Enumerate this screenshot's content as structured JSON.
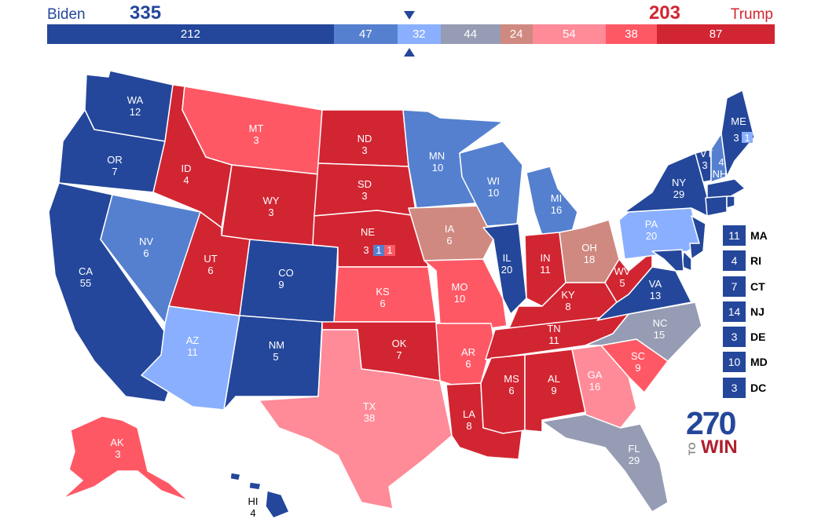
{
  "header": {
    "biden_label": "Biden",
    "biden_total": "335",
    "trump_label": "Trump",
    "trump_total": "203"
  },
  "ev_bar": [
    {
      "value": "212",
      "color": "#24479b"
    },
    {
      "value": "47",
      "color": "#5580cf"
    },
    {
      "value": "32",
      "color": "#8aafff"
    },
    {
      "value": "44",
      "color": "#959cb3"
    },
    {
      "value": "24",
      "color": "#cf8980"
    },
    {
      "value": "54",
      "color": "#ff8b98"
    },
    {
      "value": "38",
      "color": "#ff5865"
    },
    {
      "value": "87",
      "color": "#d22532"
    }
  ],
  "colors": {
    "safe_dem": "#24479b",
    "likely_dem": "#5580cf",
    "lean_dem": "#8aafff",
    "tossup": "#959cb3",
    "tilt_rep": "#cf8980",
    "lean_rep": "#ff8b98",
    "likely_rep": "#ff5865",
    "safe_rep": "#d22532"
  },
  "states": {
    "WA": {
      "abbr": "WA",
      "ev": "12"
    },
    "OR": {
      "abbr": "OR",
      "ev": "7"
    },
    "CA": {
      "abbr": "CA",
      "ev": "55"
    },
    "NV": {
      "abbr": "NV",
      "ev": "6"
    },
    "ID": {
      "abbr": "ID",
      "ev": "4"
    },
    "MT": {
      "abbr": "MT",
      "ev": "3"
    },
    "WY": {
      "abbr": "WY",
      "ev": "3"
    },
    "UT": {
      "abbr": "UT",
      "ev": "6"
    },
    "AZ": {
      "abbr": "AZ",
      "ev": "11"
    },
    "CO": {
      "abbr": "CO",
      "ev": "9"
    },
    "NM": {
      "abbr": "NM",
      "ev": "5"
    },
    "ND": {
      "abbr": "ND",
      "ev": "3"
    },
    "SD": {
      "abbr": "SD",
      "ev": "3"
    },
    "NE": {
      "abbr": "NE",
      "ev": "3"
    },
    "KS": {
      "abbr": "KS",
      "ev": "6"
    },
    "OK": {
      "abbr": "OK",
      "ev": "7"
    },
    "TX": {
      "abbr": "TX",
      "ev": "38"
    },
    "MN": {
      "abbr": "MN",
      "ev": "10"
    },
    "IA": {
      "abbr": "IA",
      "ev": "6"
    },
    "MO": {
      "abbr": "MO",
      "ev": "10"
    },
    "AR": {
      "abbr": "AR",
      "ev": "6"
    },
    "LA": {
      "abbr": "LA",
      "ev": "8"
    },
    "WI": {
      "abbr": "WI",
      "ev": "10"
    },
    "IL": {
      "abbr": "IL",
      "ev": "20"
    },
    "MI": {
      "abbr": "MI",
      "ev": "16"
    },
    "IN": {
      "abbr": "IN",
      "ev": "11"
    },
    "OH": {
      "abbr": "OH",
      "ev": "18"
    },
    "KY": {
      "abbr": "KY",
      "ev": "8"
    },
    "TN": {
      "abbr": "TN",
      "ev": "11"
    },
    "MS": {
      "abbr": "MS",
      "ev": "6"
    },
    "AL": {
      "abbr": "AL",
      "ev": "9"
    },
    "GA": {
      "abbr": "GA",
      "ev": "16"
    },
    "FL": {
      "abbr": "FL",
      "ev": "29"
    },
    "SC": {
      "abbr": "SC",
      "ev": "9"
    },
    "NC": {
      "abbr": "NC",
      "ev": "15"
    },
    "VA": {
      "abbr": "VA",
      "ev": "13"
    },
    "WV": {
      "abbr": "WV",
      "ev": "5"
    },
    "PA": {
      "abbr": "PA",
      "ev": "20"
    },
    "NY": {
      "abbr": "NY",
      "ev": "29"
    },
    "VT": {
      "abbr": "VT",
      "ev": "3"
    },
    "NH": {
      "abbr": "NH",
      "ev": "4"
    },
    "ME": {
      "abbr": "ME",
      "ev": "3"
    },
    "AK": {
      "abbr": "AK",
      "ev": "3"
    },
    "HI": {
      "abbr": "HI",
      "ev": "4"
    }
  },
  "district_boxes": {
    "ne_d1": "1",
    "ne_d2": "1",
    "me_d2": "1"
  },
  "small_states": [
    {
      "ev": "11",
      "abbr": "MA"
    },
    {
      "ev": "4",
      "abbr": "RI"
    },
    {
      "ev": "7",
      "abbr": "CT"
    },
    {
      "ev": "14",
      "abbr": "NJ"
    },
    {
      "ev": "3",
      "abbr": "DE"
    },
    {
      "ev": "10",
      "abbr": "MD"
    },
    {
      "ev": "3",
      "abbr": "DC"
    }
  ],
  "logo": {
    "number": "270",
    "to": "TO",
    "win": "WIN"
  }
}
